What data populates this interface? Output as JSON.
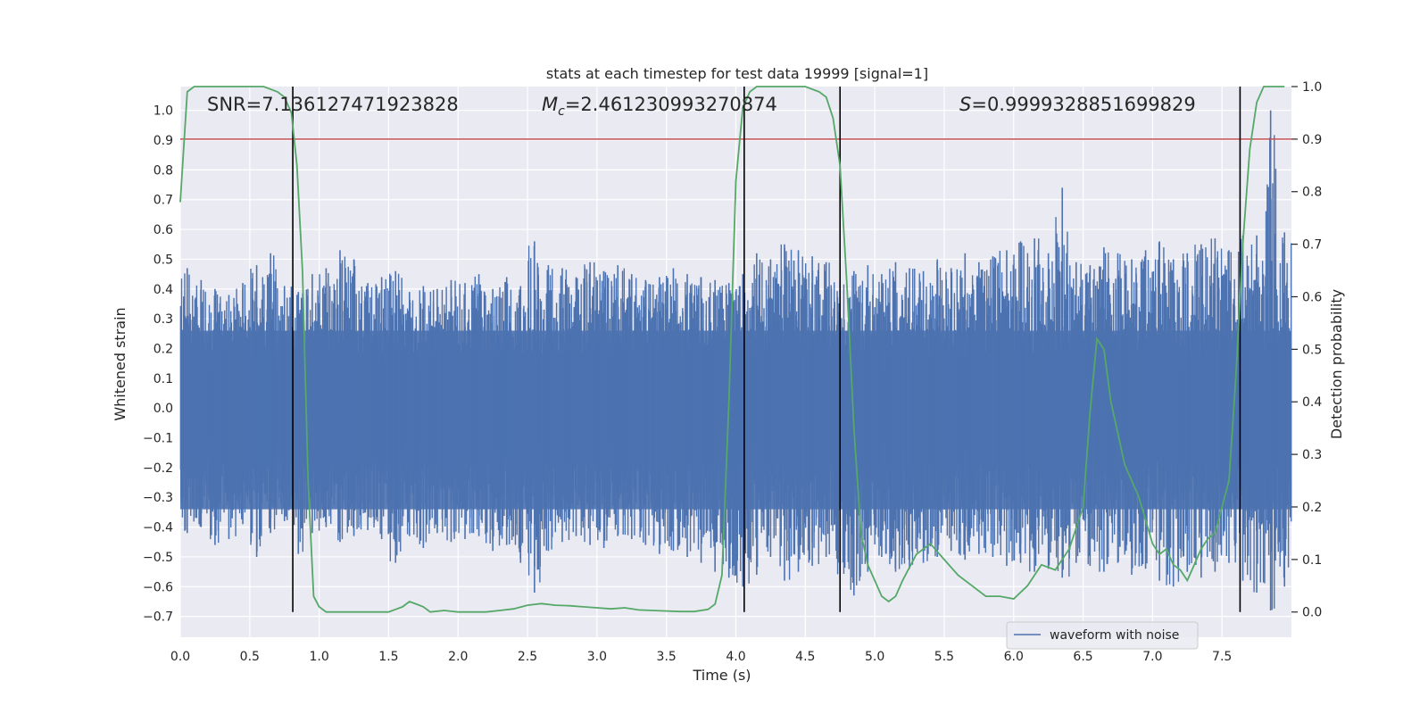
{
  "chart_data": {
    "type": "line",
    "title": "stats at each timestep for test data 19999 [signal=1]",
    "xlabel": "Time (s)",
    "ylabel": "Whitened strain",
    "y2label": "Detection probability",
    "xlim": [
      0.0,
      8.0
    ],
    "ylim": [
      -0.77,
      1.08
    ],
    "y2lim": [
      -0.048,
      1.0
    ],
    "xticks": [
      "0.0",
      "0.5",
      "1.0",
      "1.5",
      "2.0",
      "2.5",
      "3.0",
      "3.5",
      "4.0",
      "4.5",
      "5.0",
      "5.5",
      "6.0",
      "6.5",
      "7.0",
      "7.5"
    ],
    "yticks": [
      "1.0",
      "0.9",
      "0.8",
      "0.7",
      "0.6",
      "0.5",
      "0.4",
      "0.3",
      "0.2",
      "0.1",
      "0.0",
      "−0.1",
      "−0.2",
      "−0.3",
      "−0.4",
      "−0.5",
      "−0.6",
      "−0.7"
    ],
    "y2ticks": [
      "1.0",
      "0.9",
      "0.8",
      "0.7",
      "0.6",
      "0.5",
      "0.4",
      "0.3",
      "0.2",
      "0.1",
      "0.0"
    ],
    "grid": true,
    "legend_position": "lower-right",
    "annotations": {
      "snr": "SNR=7.136127471923828",
      "mc_symbol": "M",
      "mc_sub": "c",
      "mc_value": "=2.461230993270874",
      "s_symbol": "S",
      "s_value": "=0.9999328851699829"
    },
    "threshold": 0.9,
    "vertical_lines": [
      0.81,
      4.06,
      4.75,
      7.63
    ],
    "series": [
      {
        "name": "waveform with noise",
        "color": "#4c72b0",
        "envelope": {
          "x": [
            0.0,
            0.1,
            0.2,
            0.3,
            0.4,
            0.5,
            0.6,
            0.7,
            0.8,
            0.9,
            1.0,
            1.1,
            1.2,
            1.3,
            1.4,
            1.5,
            1.6,
            1.7,
            1.8,
            1.9,
            2.0,
            2.1,
            2.2,
            2.3,
            2.4,
            2.5,
            2.6,
            2.7,
            2.8,
            2.9,
            3.0,
            3.1,
            3.2,
            3.3,
            3.4,
            3.5,
            3.6,
            3.7,
            3.8,
            3.9,
            4.0,
            4.1,
            4.2,
            4.3,
            4.4,
            4.5,
            4.6,
            4.7,
            4.8,
            4.9,
            5.0,
            5.1,
            5.2,
            5.3,
            5.4,
            5.5,
            5.6,
            5.7,
            5.8,
            5.9,
            6.0,
            6.1,
            6.2,
            6.3,
            6.4,
            6.5,
            6.6,
            6.7,
            6.8,
            6.9,
            7.0,
            7.1,
            7.2,
            7.3,
            7.4,
            7.5,
            7.6,
            7.7,
            7.8,
            7.9
          ],
          "max": [
            0.47,
            0.43,
            0.4,
            0.38,
            0.42,
            0.48,
            0.52,
            0.41,
            0.39,
            0.45,
            0.47,
            0.53,
            0.5,
            0.42,
            0.44,
            0.46,
            0.39,
            0.41,
            0.4,
            0.43,
            0.42,
            0.45,
            0.4,
            0.44,
            0.41,
            0.56,
            0.48,
            0.47,
            0.44,
            0.49,
            0.46,
            0.48,
            0.45,
            0.43,
            0.44,
            0.47,
            0.45,
            0.44,
            0.43,
            0.42,
            0.45,
            0.52,
            0.5,
            0.55,
            0.53,
            0.51,
            0.49,
            0.43,
            0.46,
            0.48,
            0.45,
            0.49,
            0.47,
            0.46,
            0.5,
            0.47,
            0.52,
            0.49,
            0.51,
            0.53,
            0.56,
            0.57,
            0.52,
            0.74,
            0.49,
            0.48,
            0.54,
            0.52,
            0.5,
            0.53,
            0.56,
            0.5,
            0.52,
            0.55,
            0.57,
            0.53,
            0.58,
            0.58,
            1.0,
            0.59
          ],
          "min": [
            -0.42,
            -0.4,
            -0.46,
            -0.44,
            -0.39,
            -0.5,
            -0.42,
            -0.38,
            -0.49,
            -0.42,
            -0.4,
            -0.45,
            -0.43,
            -0.41,
            -0.44,
            -0.52,
            -0.43,
            -0.47,
            -0.42,
            -0.45,
            -0.44,
            -0.43,
            -0.48,
            -0.46,
            -0.52,
            -0.62,
            -0.48,
            -0.45,
            -0.43,
            -0.46,
            -0.47,
            -0.43,
            -0.44,
            -0.46,
            -0.49,
            -0.48,
            -0.5,
            -0.52,
            -0.55,
            -0.57,
            -0.6,
            -0.56,
            -0.5,
            -0.58,
            -0.55,
            -0.53,
            -0.5,
            -0.56,
            -0.63,
            -0.55,
            -0.5,
            -0.55,
            -0.54,
            -0.52,
            -0.5,
            -0.48,
            -0.51,
            -0.49,
            -0.5,
            -0.53,
            -0.52,
            -0.55,
            -0.54,
            -0.57,
            -0.52,
            -0.53,
            -0.55,
            -0.52,
            -0.56,
            -0.54,
            -0.58,
            -0.6,
            -0.55,
            -0.57,
            -0.55,
            -0.52,
            -0.58,
            -0.62,
            -0.68,
            -0.6
          ]
        }
      },
      {
        "name": "Detection probability",
        "color": "#55a868",
        "axis": "right",
        "x": [
          0.0,
          0.05,
          0.1,
          0.2,
          0.3,
          0.4,
          0.5,
          0.6,
          0.7,
          0.75,
          0.8,
          0.84,
          0.88,
          0.92,
          0.96,
          1.0,
          1.05,
          1.1,
          1.2,
          1.3,
          1.4,
          1.5,
          1.55,
          1.6,
          1.65,
          1.7,
          1.75,
          1.8,
          1.9,
          2.0,
          2.1,
          2.2,
          2.3,
          2.4,
          2.5,
          2.6,
          2.7,
          2.8,
          2.9,
          3.0,
          3.1,
          3.2,
          3.3,
          3.4,
          3.5,
          3.6,
          3.7,
          3.8,
          3.85,
          3.9,
          3.95,
          4.0,
          4.05,
          4.1,
          4.15,
          4.2,
          4.3,
          4.4,
          4.5,
          4.6,
          4.65,
          4.7,
          4.75,
          4.8,
          4.85,
          4.9,
          4.95,
          5.0,
          5.05,
          5.1,
          5.15,
          5.2,
          5.3,
          5.4,
          5.5,
          5.6,
          5.7,
          5.8,
          5.9,
          6.0,
          6.1,
          6.15,
          6.2,
          6.3,
          6.4,
          6.5,
          6.55,
          6.6,
          6.65,
          6.7,
          6.8,
          6.9,
          7.0,
          7.05,
          7.1,
          7.15,
          7.2,
          7.25,
          7.3,
          7.35,
          7.4,
          7.45,
          7.5,
          7.55,
          7.6,
          7.65,
          7.7,
          7.75,
          7.8,
          7.85,
          7.9,
          7.95
        ],
        "values": [
          0.78,
          0.99,
          1.0,
          1.0,
          1.0,
          1.0,
          1.0,
          1.0,
          0.99,
          0.98,
          0.95,
          0.85,
          0.65,
          0.25,
          0.03,
          0.01,
          0.0,
          0.0,
          0.0,
          0.0,
          0.0,
          0.0,
          0.005,
          0.01,
          0.02,
          0.015,
          0.01,
          0.0,
          0.003,
          0.0,
          0.0,
          0.0,
          0.003,
          0.006,
          0.013,
          0.016,
          0.013,
          0.012,
          0.01,
          0.008,
          0.006,
          0.008,
          0.004,
          0.003,
          0.002,
          0.001,
          0.001,
          0.005,
          0.015,
          0.07,
          0.4,
          0.82,
          0.96,
          0.99,
          1.0,
          1.0,
          1.0,
          1.0,
          1.0,
          0.99,
          0.98,
          0.94,
          0.85,
          0.62,
          0.35,
          0.15,
          0.09,
          0.06,
          0.03,
          0.02,
          0.03,
          0.06,
          0.11,
          0.13,
          0.1,
          0.07,
          0.05,
          0.03,
          0.03,
          0.025,
          0.05,
          0.07,
          0.09,
          0.08,
          0.12,
          0.2,
          0.38,
          0.52,
          0.5,
          0.4,
          0.28,
          0.22,
          0.13,
          0.11,
          0.12,
          0.09,
          0.08,
          0.06,
          0.09,
          0.12,
          0.14,
          0.15,
          0.2,
          0.25,
          0.45,
          0.7,
          0.88,
          0.97,
          1.0,
          1.0,
          1.0,
          1.0
        ]
      }
    ]
  }
}
